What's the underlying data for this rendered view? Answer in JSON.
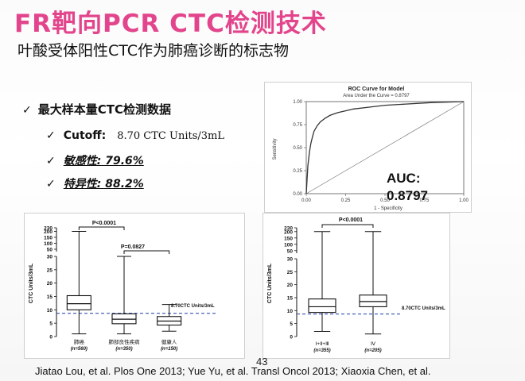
{
  "title": "FR靶向PCR CTC检测技术",
  "subtitle": "叶酸受体阳性CTC作为肺癌诊断的标志物",
  "bullets": {
    "main": "最大样本量CTC检测数据",
    "cutoff_label": "Cutoff:",
    "cutoff_value": "8.70 CTC Units/3mL",
    "sensitivity": "敏感性: 79.6%",
    "specificity": "特异性: 88.2%"
  },
  "colors": {
    "title": "#e3458c",
    "cutoff_line": "#1f3aa8",
    "roc_curve": "#333333",
    "box": "#111111"
  },
  "icons": {
    "bullet": "checkmark-icon"
  },
  "auc": {
    "label": "AUC:",
    "value": "0.8797"
  },
  "page_number": "43",
  "footer": "Jiatao Lou, et al. Plos One 2013; Yue Yu, et al. Transl Oncol 2013; Xiaoxia Chen, et al.",
  "chart_data": [
    {
      "type": "line",
      "title": "ROC Curve for Model",
      "subtitle": "Area Under the Curve = 0.8797",
      "xlabel": "1 - Specificity",
      "ylabel": "Sensitivity",
      "xlim": [
        0,
        1
      ],
      "ylim": [
        0,
        1
      ],
      "x_ticks": [
        "0.00",
        "0.25",
        "0.50",
        "0.75",
        "1.00"
      ],
      "y_ticks": [
        "0.00",
        "0.25",
        "0.50",
        "0.75",
        "1.00"
      ],
      "series": [
        {
          "x": [
            0,
            0.005,
            0.01,
            0.02,
            0.03,
            0.04,
            0.05,
            0.07,
            0.09,
            0.12,
            0.15,
            0.2,
            0.25,
            0.3,
            0.4,
            0.5,
            0.6,
            0.7,
            0.8,
            0.9,
            1.0
          ],
          "y": [
            0,
            0.15,
            0.3,
            0.45,
            0.55,
            0.62,
            0.68,
            0.74,
            0.78,
            0.82,
            0.85,
            0.88,
            0.9,
            0.92,
            0.94,
            0.96,
            0.97,
            0.98,
            0.99,
            0.995,
            1.0
          ]
        },
        {
          "x": [
            0,
            1
          ],
          "y": [
            0,
            1
          ]
        }
      ]
    },
    {
      "type": "box",
      "ylabel": "CTC Units/3mL",
      "y_ticks": [
        "0",
        "5",
        "10",
        "15",
        "20",
        "25",
        "30",
        "50",
        "100",
        "150",
        "200",
        "230"
      ],
      "categories": [
        "肺癌",
        "肺部良性疾病",
        "健康人"
      ],
      "category_n": [
        "(n=560)",
        "(n=350)",
        "(n=150)"
      ],
      "boxes": [
        {
          "min": 1,
          "q1": 10,
          "median": 12.3,
          "q3": 15.3,
          "max": 200
        },
        {
          "min": 1,
          "q1": 4.8,
          "median": 6.5,
          "q3": 8.5,
          "max": 30
        },
        {
          "min": 2,
          "q1": 4.3,
          "median": 5.8,
          "q3": 7.5,
          "max": 12
        }
      ],
      "cutoff": 8.7,
      "cutoff_label": "8.70CTC Units/3mL",
      "annotations": [
        "P<0.0001",
        "P=0.0827"
      ]
    },
    {
      "type": "box",
      "ylabel": "CTC Units/3mL",
      "y_ticks": [
        "0",
        "5",
        "10",
        "15",
        "20",
        "25",
        "30",
        "50",
        "100",
        "150",
        "200",
        "230"
      ],
      "categories": [
        "Ⅰ+Ⅱ+Ⅲ",
        "Ⅳ"
      ],
      "category_n": [
        "(n=355)",
        "(n=205)"
      ],
      "boxes": [
        {
          "min": 2,
          "q1": 9.3,
          "median": 11.5,
          "q3": 14.5,
          "max": 200
        },
        {
          "min": 1,
          "q1": 11.5,
          "median": 13.5,
          "q3": 16,
          "max": 200
        }
      ],
      "cutoff": 8.7,
      "cutoff_label": "8.70CTC Units/3mL",
      "annotations": [
        "P<0.0001"
      ]
    }
  ]
}
